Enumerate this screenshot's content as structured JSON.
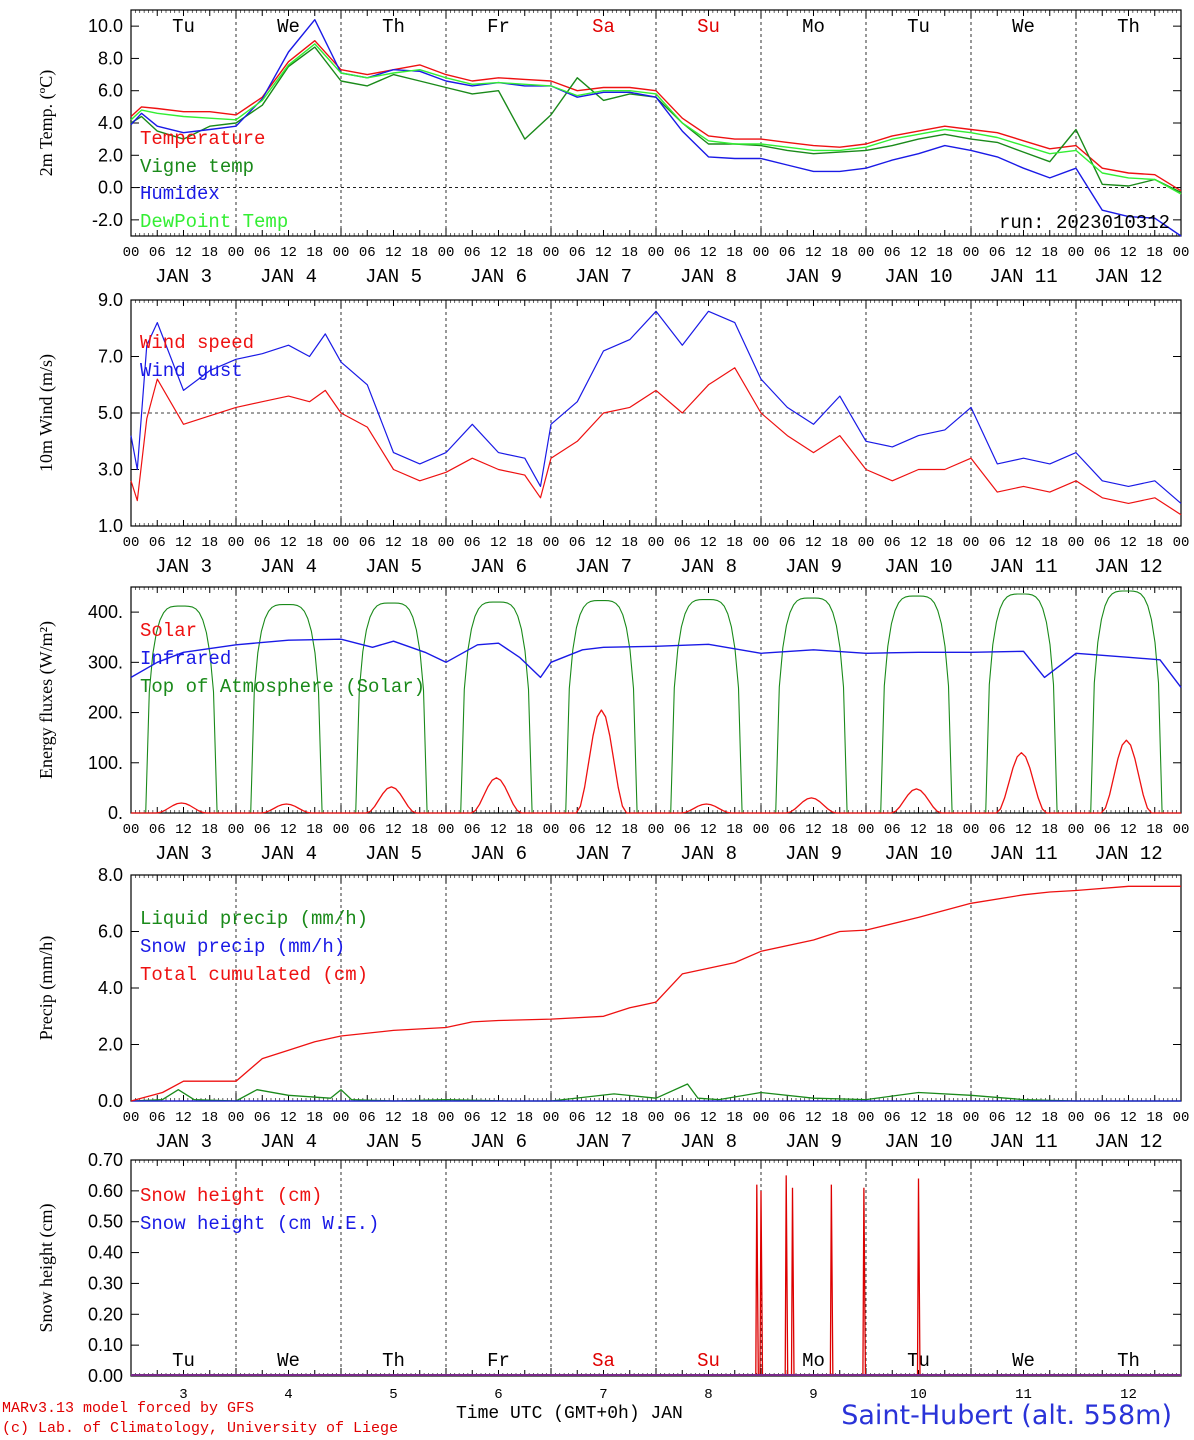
{
  "colors": {
    "red": "#ee1111",
    "green": "#1a8a1a",
    "blue": "#1a1ae6",
    "lightgreen": "#33ee33",
    "darkred": "#dd0000"
  },
  "days": [
    "Tu",
    "We",
    "Th",
    "Fr",
    "Sa",
    "Su",
    "Mo",
    "Tu",
    "We",
    "Th"
  ],
  "weekend_day_indices": [
    4,
    5
  ],
  "date_labels": [
    "JAN  3",
    "JAN  4",
    "JAN  5",
    "JAN  6",
    "JAN  7",
    "JAN  8",
    "JAN  9",
    "JAN 10",
    "JAN 11",
    "JAN 12"
  ],
  "day_numbers": [
    "3",
    "4",
    "5",
    "6",
    "7",
    "8",
    "9",
    "10",
    "11",
    "12"
  ],
  "hour_ticks": [
    "00",
    "06",
    "12",
    "18"
  ],
  "footer": {
    "model": "MARv3.13 model forced by GFS",
    "lab": "(c) Lab. of Climatology, University of Liege",
    "xlabel": "Time UTC (GMT+0h) JAN",
    "station": "Saint-Hubert (alt. 558m)"
  },
  "chart_data": [
    {
      "type": "line",
      "ylabel": "2m Temp. (ºC)",
      "ylim": [
        -3.0,
        11.0
      ],
      "yticks": [
        "10.0",
        "8.0",
        "6.0",
        "4.0",
        "2.0",
        "0.0",
        "-2.0"
      ],
      "annotation": "run: 2023010312",
      "x_unit": "days since JAN 3 00 UTC (0 to 10)",
      "series": [
        {
          "name": "Temperature",
          "color": "red",
          "x": [
            0,
            0.1,
            0.25,
            0.5,
            0.75,
            1,
            1.25,
            1.5,
            1.75,
            2,
            2.25,
            2.5,
            2.75,
            3,
            3.25,
            3.5,
            3.75,
            4,
            4.25,
            4.5,
            4.75,
            5,
            5.25,
            5.5,
            5.75,
            6,
            6.25,
            6.5,
            6.75,
            7,
            7.25,
            7.5,
            7.75,
            8,
            8.25,
            8.5,
            8.75,
            9,
            9.25,
            9.5,
            9.75,
            10
          ],
          "y": [
            4.4,
            5.0,
            4.9,
            4.7,
            4.7,
            4.5,
            5.6,
            7.8,
            9.1,
            7.3,
            7.0,
            7.3,
            7.6,
            7.0,
            6.6,
            6.8,
            6.7,
            6.6,
            6.0,
            6.2,
            6.2,
            6.0,
            4.3,
            3.2,
            3.0,
            3.0,
            2.8,
            2.6,
            2.5,
            2.7,
            3.2,
            3.5,
            3.8,
            3.6,
            3.4,
            2.9,
            2.4,
            2.6,
            1.2,
            0.9,
            0.8,
            -0.2
          ]
        },
        {
          "name": "Vigne temp",
          "color": "green",
          "x": [
            0,
            0.1,
            0.25,
            0.5,
            0.75,
            1,
            1.25,
            1.5,
            1.75,
            2,
            2.25,
            2.5,
            2.75,
            3,
            3.25,
            3.5,
            3.75,
            4,
            4.25,
            4.5,
            4.75,
            5,
            5.25,
            5.5,
            5.75,
            6,
            6.25,
            6.5,
            6.75,
            7,
            7.25,
            7.5,
            7.75,
            8,
            8.25,
            8.5,
            8.75,
            9,
            9.25,
            9.5,
            9.75,
            10
          ],
          "y": [
            4.0,
            4.4,
            3.5,
            3.0,
            3.8,
            4.0,
            5.1,
            7.5,
            8.7,
            6.6,
            6.3,
            7.0,
            6.6,
            6.2,
            5.8,
            6.0,
            3.0,
            4.5,
            6.8,
            5.4,
            5.8,
            5.6,
            4.0,
            2.7,
            2.7,
            2.6,
            2.3,
            2.1,
            2.2,
            2.3,
            2.6,
            3.0,
            3.3,
            3.0,
            2.8,
            2.2,
            1.6,
            3.6,
            0.2,
            0.1,
            0.5,
            -0.3
          ]
        },
        {
          "name": "Humidex",
          "color": "blue",
          "x": [
            0,
            0.1,
            0.25,
            0.5,
            0.75,
            1,
            1.25,
            1.5,
            1.75,
            2,
            2.25,
            2.5,
            2.75,
            3,
            3.25,
            3.5,
            3.75,
            4,
            4.25,
            4.5,
            4.75,
            5,
            5.25,
            5.5,
            5.75,
            6,
            6.25,
            6.5,
            6.75,
            7,
            7.25,
            7.5,
            7.75,
            8,
            8.25,
            8.5,
            8.75,
            9,
            9.25,
            9.5,
            9.75,
            10
          ],
          "y": [
            3.9,
            4.6,
            3.8,
            3.4,
            3.6,
            3.8,
            5.5,
            8.4,
            10.4,
            7.1,
            6.8,
            7.3,
            7.2,
            6.6,
            6.3,
            6.5,
            6.3,
            6.3,
            5.6,
            5.9,
            5.9,
            5.6,
            3.5,
            1.9,
            1.8,
            1.8,
            1.4,
            1.0,
            1.0,
            1.2,
            1.7,
            2.1,
            2.6,
            2.3,
            1.9,
            1.2,
            0.6,
            1.2,
            -1.4,
            -1.8,
            -1.9,
            -3.0
          ]
        },
        {
          "name": "DewPoint Temp",
          "color": "lightgreen",
          "x": [
            0,
            0.1,
            0.25,
            0.5,
            0.75,
            1,
            1.25,
            1.5,
            1.75,
            2,
            2.25,
            2.5,
            2.75,
            3,
            3.25,
            3.5,
            3.75,
            4,
            4.25,
            4.5,
            4.75,
            5,
            5.25,
            5.5,
            5.75,
            6,
            6.25,
            6.5,
            6.75,
            7,
            7.25,
            7.5,
            7.75,
            8,
            8.25,
            8.5,
            8.75,
            9,
            9.25,
            9.5,
            9.75,
            10
          ],
          "y": [
            4.2,
            4.8,
            4.6,
            4.4,
            4.3,
            4.2,
            5.4,
            7.6,
            8.9,
            7.1,
            6.8,
            7.1,
            7.3,
            6.8,
            6.4,
            6.5,
            6.4,
            6.3,
            5.7,
            6.0,
            6.0,
            5.8,
            4.0,
            2.9,
            2.7,
            2.7,
            2.5,
            2.3,
            2.3,
            2.5,
            3.0,
            3.3,
            3.6,
            3.4,
            3.1,
            2.6,
            2.1,
            2.3,
            0.9,
            0.6,
            0.5,
            -0.4
          ]
        }
      ]
    },
    {
      "type": "line",
      "ylabel": "10m Wind (m/s)",
      "ylim": [
        1.0,
        9.0
      ],
      "yticks": [
        "9.0",
        "7.0",
        "5.0",
        "3.0",
        "1.0"
      ],
      "x_unit": "days since JAN 3 00 UTC (0 to 10)",
      "series": [
        {
          "name": "Wind speed",
          "color": "red",
          "x": [
            0,
            0.06,
            0.15,
            0.25,
            0.5,
            0.75,
            1,
            1.25,
            1.5,
            1.7,
            1.85,
            2,
            2.25,
            2.5,
            2.75,
            3,
            3.25,
            3.5,
            3.75,
            3.9,
            4,
            4.25,
            4.5,
            4.75,
            5,
            5.25,
            5.5,
            5.75,
            6,
            6.25,
            6.5,
            6.75,
            7,
            7.25,
            7.5,
            7.75,
            8,
            8.25,
            8.5,
            8.75,
            9,
            9.25,
            9.5,
            9.75,
            10
          ],
          "y": [
            2.6,
            1.9,
            4.8,
            6.2,
            4.6,
            4.9,
            5.2,
            5.4,
            5.6,
            5.4,
            5.8,
            5.0,
            4.5,
            3.0,
            2.6,
            2.9,
            3.4,
            3.0,
            2.8,
            2.0,
            3.4,
            4.0,
            5.0,
            5.2,
            5.8,
            5.0,
            6.0,
            6.6,
            5.0,
            4.2,
            3.6,
            4.2,
            3.0,
            2.6,
            3.0,
            3.0,
            3.4,
            2.2,
            2.4,
            2.2,
            2.6,
            2.0,
            1.8,
            2.0,
            1.4
          ]
        },
        {
          "name": "Wind gust",
          "color": "blue",
          "x": [
            0,
            0.06,
            0.15,
            0.25,
            0.5,
            0.75,
            1,
            1.25,
            1.5,
            1.7,
            1.85,
            2,
            2.25,
            2.5,
            2.75,
            3,
            3.25,
            3.5,
            3.75,
            3.9,
            4,
            4.25,
            4.5,
            4.75,
            5,
            5.25,
            5.5,
            5.75,
            6,
            6.25,
            6.5,
            6.75,
            7,
            7.25,
            7.5,
            7.75,
            8,
            8.25,
            8.5,
            8.75,
            9,
            9.25,
            9.5,
            9.75,
            10
          ],
          "y": [
            4.2,
            3.0,
            7.4,
            8.2,
            5.8,
            6.5,
            6.9,
            7.1,
            7.4,
            7.0,
            7.8,
            6.8,
            6.0,
            3.6,
            3.2,
            3.6,
            4.6,
            3.6,
            3.4,
            2.4,
            4.6,
            5.4,
            7.2,
            7.6,
            8.6,
            7.4,
            8.6,
            8.2,
            6.2,
            5.2,
            4.6,
            5.6,
            4.0,
            3.8,
            4.2,
            4.4,
            5.2,
            3.2,
            3.4,
            3.2,
            3.6,
            2.6,
            2.4,
            2.6,
            1.8
          ]
        }
      ]
    },
    {
      "type": "line",
      "ylabel": "Energy fluxes (W/m²)",
      "ylim": [
        0,
        450
      ],
      "yticks": [
        "400.",
        "300.",
        "200.",
        "100.",
        "0."
      ],
      "x_unit": "days since JAN 3 00 UTC (0 to 10)",
      "toa_peaks": [
        412,
        415,
        418,
        420,
        423,
        425,
        428,
        432,
        436,
        442
      ],
      "solar_peaks": [
        20,
        18,
        52,
        70,
        205,
        18,
        30,
        48,
        120,
        145
      ],
      "infrared": {
        "x": [
          0,
          0.25,
          0.5,
          1,
          1.5,
          2,
          2.3,
          2.5,
          2.8,
          3,
          3.3,
          3.5,
          3.7,
          3.9,
          4,
          4.3,
          4.5,
          5,
          5.5,
          6,
          6.5,
          7,
          7.5,
          8,
          8.5,
          8.7,
          9,
          9.5,
          9.8,
          10
        ],
        "y": [
          270,
          300,
          320,
          335,
          344,
          346,
          330,
          342,
          320,
          300,
          335,
          338,
          310,
          270,
          300,
          325,
          330,
          332,
          336,
          318,
          325,
          318,
          320,
          320,
          322,
          270,
          318,
          310,
          305,
          250
        ]
      },
      "series": [
        {
          "name": "Solar",
          "color": "red"
        },
        {
          "name": "Infrared",
          "color": "blue"
        },
        {
          "name": "Top of Atmosphere (Solar)",
          "color": "green"
        }
      ]
    },
    {
      "type": "line",
      "ylabel": "Precip (mm/h)",
      "ylim": [
        0,
        8.0
      ],
      "yticks": [
        "8.0",
        "6.0",
        "4.0",
        "2.0",
        "0.0"
      ],
      "x_unit": "days since JAN 3 00 UTC (0 to 10)",
      "series": [
        {
          "name": "Liquid precip (mm/h)",
          "color": "green",
          "x": [
            0,
            0.3,
            0.45,
            0.6,
            1,
            1.2,
            1.5,
            1.9,
            2,
            2.1,
            2.5,
            3,
            3.6,
            4,
            4.6,
            5,
            5.3,
            5.4,
            5.6,
            6,
            6.5,
            7,
            7.5,
            8,
            8.5,
            9,
            9.5,
            10
          ],
          "y": [
            0,
            0.05,
            0.4,
            0.05,
            0,
            0.4,
            0.2,
            0.1,
            0.4,
            0.05,
            0,
            0.05,
            0,
            0,
            0.25,
            0.1,
            0.6,
            0.1,
            0.05,
            0.3,
            0.1,
            0.05,
            0.3,
            0.2,
            0.05,
            0,
            0,
            0
          ]
        },
        {
          "name": "Snow precip (mm/h)",
          "color": "blue",
          "x": [
            0,
            10
          ],
          "y": [
            0,
            0
          ]
        },
        {
          "name": "Total cumulated (cm)",
          "color": "red",
          "x": [
            0,
            0.3,
            0.5,
            1,
            1.25,
            1.5,
            1.75,
            2,
            2.5,
            3,
            3.25,
            3.5,
            4,
            4.5,
            4.75,
            5,
            5.25,
            5.5,
            5.75,
            6,
            6.5,
            6.75,
            7,
            7.5,
            8,
            8.5,
            8.75,
            9,
            9.5,
            10
          ],
          "y": [
            0,
            0.3,
            0.7,
            0.7,
            1.5,
            1.8,
            2.1,
            2.3,
            2.5,
            2.6,
            2.8,
            2.85,
            2.9,
            3.0,
            3.3,
            3.5,
            4.5,
            4.7,
            4.9,
            5.3,
            5.7,
            6.0,
            6.05,
            6.5,
            7.0,
            7.3,
            7.4,
            7.45,
            7.6,
            7.6
          ]
        }
      ]
    },
    {
      "type": "line",
      "ylabel": "Snow height (cm)",
      "ylim": [
        0,
        0.7
      ],
      "yticks": [
        "0.70",
        "0.60",
        "0.50",
        "0.40",
        "0.30",
        "0.20",
        "0.10",
        "0.00"
      ],
      "x_unit": "days since JAN 3 00 UTC (0 to 10)",
      "spikes": {
        "x": [
          5.96,
          6.0,
          6.24,
          6.3,
          6.67,
          6.98,
          7.5
        ],
        "y": [
          0.62,
          0.6,
          0.65,
          0.61,
          0.62,
          0.61,
          0.64
        ]
      },
      "series": [
        {
          "name": "Snow height (cm)",
          "color": "red"
        },
        {
          "name": "Snow height (cm W.E.)",
          "color": "blue"
        }
      ]
    }
  ]
}
